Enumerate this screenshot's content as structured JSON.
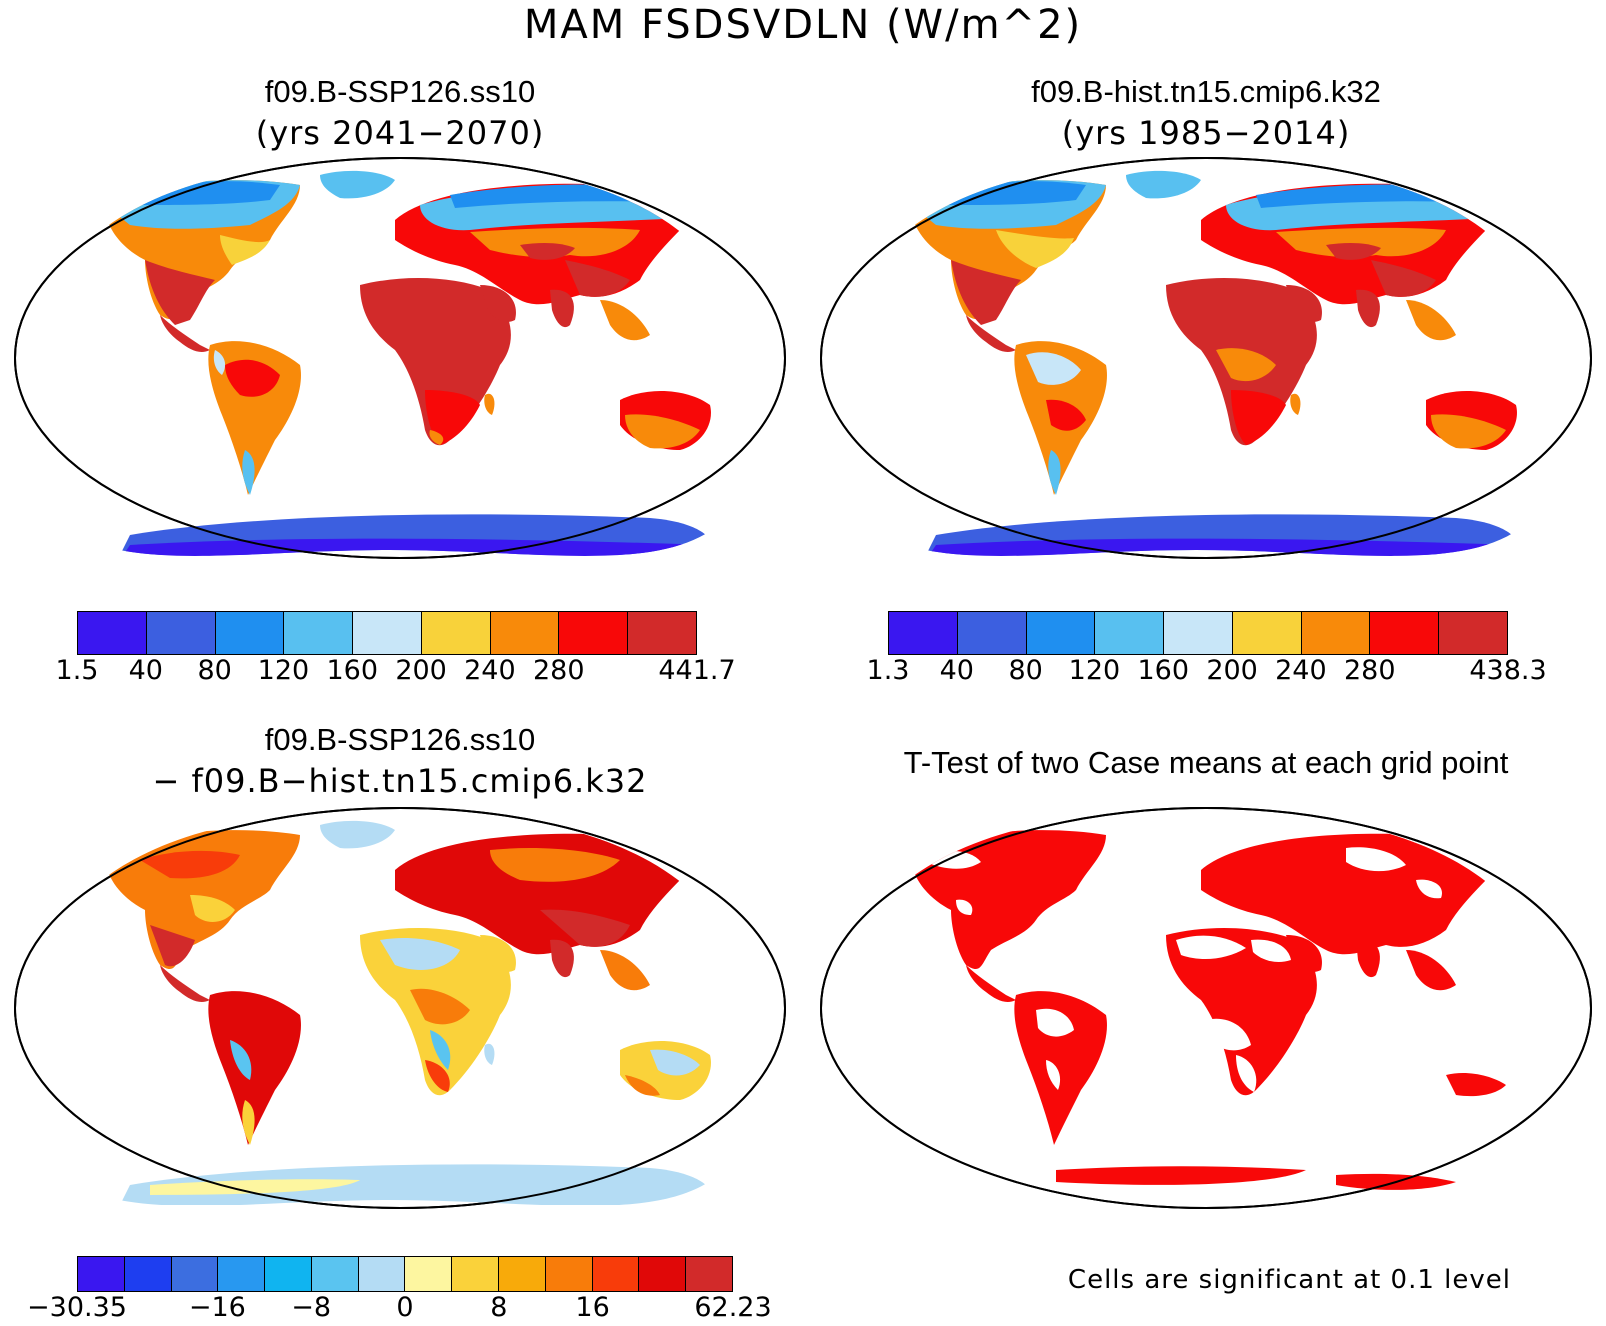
{
  "title": "MAM FSDSVDLN (W/m^2)",
  "panels": {
    "top_left": {
      "case": "f09.B-SSP126.ss10",
      "years": "(yrs 2041−2070)",
      "colorbar": {
        "colors": [
          "#3a17f0",
          "#3c5fe0",
          "#1f8ff0",
          "#58c0f0",
          "#c8e6f8",
          "#f8d23a",
          "#f88a0a",
          "#f80808",
          "#d22a2a"
        ],
        "labels": [
          "1.5",
          "40",
          "80",
          "120",
          "160",
          "200",
          "240",
          "280",
          "441.7"
        ]
      }
    },
    "top_right": {
      "case": "f09.B-hist.tn15.cmip6.k32",
      "years": "(yrs 1985−2014)",
      "colorbar": {
        "colors": [
          "#3a17f0",
          "#3c5fe0",
          "#1f8ff0",
          "#58c0f0",
          "#c8e6f8",
          "#f8d23a",
          "#f88a0a",
          "#f80808",
          "#d22a2a"
        ],
        "labels": [
          "1.3",
          "40",
          "80",
          "120",
          "160",
          "200",
          "240",
          "280",
          "438.3"
        ]
      }
    },
    "bottom_left": {
      "case": "f09.B-SSP126.ss10",
      "minus_case": "− f09.B−hist.tn15.cmip6.k32",
      "colorbar": {
        "colors": [
          "#3a17f0",
          "#1e3ef0",
          "#3c6ee0",
          "#2898f0",
          "#10b4f0",
          "#5ac4f0",
          "#b4dcf4",
          "#fdf6a0",
          "#fad23a",
          "#f8aa0a",
          "#f87c0a",
          "#f83c0a",
          "#e00808",
          "#d22a2a"
        ],
        "labels": [
          "−30.35",
          "−16",
          "−8",
          "0",
          "8",
          "16",
          "62.23"
        ]
      }
    },
    "bottom_right": {
      "title": "T-Test of two Case means at each grid point",
      "note": "Cells are significant at 0.1 level",
      "significant_color": "#f80808"
    }
  }
}
